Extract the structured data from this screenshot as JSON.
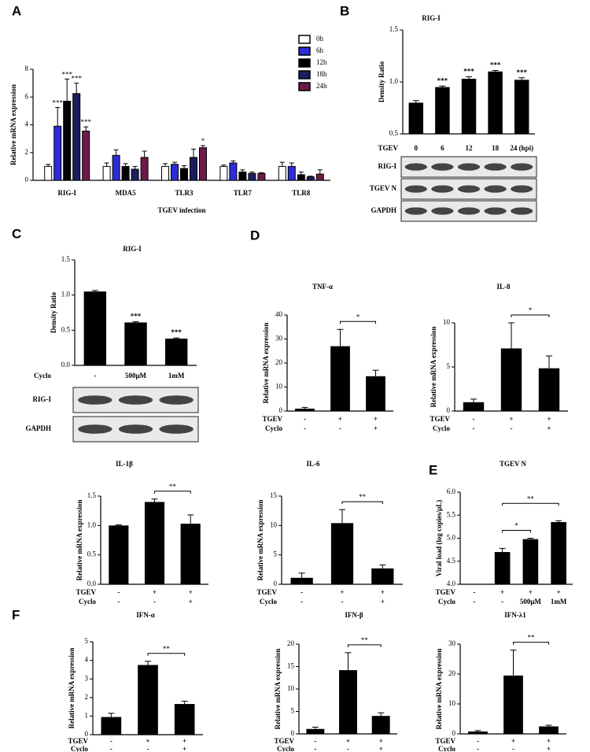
{
  "chart_data": [
    {
      "type": "bar",
      "panel": "A",
      "y_label": "Relative  mRNA expression",
      "x_label": "TGEV infection",
      "categories": [
        "RIG-I",
        "MDA5",
        "TLR3",
        "TLR7",
        "TLR8"
      ],
      "series": [
        {
          "name": "0h",
          "color": "#ffffff",
          "values": [
            1.0,
            1.0,
            1.0,
            1.0,
            1.0
          ],
          "errors": [
            0.15,
            0.25,
            0.2,
            0.1,
            0.3
          ],
          "significance": [
            null,
            null,
            null,
            null,
            null
          ]
        },
        {
          "name": "6h",
          "color": "#2c2cd8",
          "values": [
            3.9,
            1.8,
            1.15,
            1.25,
            1.0
          ],
          "errors": [
            1.35,
            0.4,
            0.15,
            0.15,
            0.25
          ],
          "significance": [
            "***",
            null,
            null,
            null,
            null
          ]
        },
        {
          "name": "12h",
          "color": "#000000",
          "values": [
            5.7,
            1.0,
            0.85,
            0.6,
            0.4
          ],
          "errors": [
            1.6,
            0.2,
            0.2,
            0.15,
            0.2
          ],
          "significance": [
            "***",
            null,
            null,
            null,
            null
          ]
        },
        {
          "name": "18h",
          "color": "#1b1f5e",
          "values": [
            6.25,
            0.8,
            1.65,
            0.5,
            0.25
          ],
          "errors": [
            0.75,
            0.2,
            0.6,
            0.1,
            0.05
          ],
          "significance": [
            "***",
            null,
            null,
            null,
            null
          ]
        },
        {
          "name": "24h",
          "color": "#6b1a4a",
          "values": [
            3.55,
            1.65,
            2.35,
            0.5,
            0.45
          ],
          "errors": [
            0.3,
            0.45,
            0.15,
            0.05,
            0.3
          ],
          "significance": [
            "***",
            null,
            "*",
            null,
            null
          ]
        }
      ],
      "ylim": [
        0,
        8
      ],
      "yticks": [
        0,
        2,
        4,
        6,
        8
      ],
      "legend": "top-right"
    },
    {
      "type": "bar",
      "panel": "B",
      "title": "RIG-I",
      "y_label": "Density Ratio",
      "color": "#000000",
      "values": [
        0.8,
        0.95,
        1.03,
        1.1,
        1.02
      ],
      "errors": [
        0.02,
        0.01,
        0.02,
        0.01,
        0.02
      ],
      "significance": [
        null,
        "***",
        "***",
        "***",
        "***"
      ],
      "ylim": [
        0.5,
        1.5
      ],
      "yticks": [
        {
          "value": 0.5,
          "label": "0.5"
        },
        {
          "value": 1,
          "label": "1.0"
        },
        {
          "value": 1.5,
          "label": "1.5"
        }
      ],
      "rows": [
        {
          "label": "TGEV",
          "cells": [
            "0",
            "6",
            "12",
            "18",
            "24 (hpi)"
          ]
        }
      ],
      "blots": [
        "RIG-I",
        "TGEV N",
        "GAPDH"
      ]
    },
    {
      "type": "bar",
      "panel": "C",
      "title": "RIG-I",
      "y_label": "Density Ratio",
      "color": "#000000",
      "values": [
        1.05,
        0.61,
        0.38
      ],
      "errors": [
        0.015,
        0.01,
        0.01
      ],
      "significance": [
        null,
        "***",
        "***"
      ],
      "ylim": [
        0,
        1.5
      ],
      "yticks": [
        {
          "value": 0,
          "label": "0.0"
        },
        0.5,
        {
          "value": 1,
          "label": "1.0"
        },
        1.5
      ],
      "rows": [
        {
          "label": "Cyclo",
          "cells": [
            "-",
            "500μM",
            "1mM"
          ]
        }
      ],
      "blots": [
        "RIG-I",
        "GAPDH"
      ]
    },
    {
      "type": "bar",
      "panel": "D",
      "title": "TNF-α",
      "y_label": "Relative mRNA expression",
      "color": "#000000",
      "values": [
        1,
        27,
        14.5
      ],
      "errors": [
        0.5,
        7,
        2.5
      ],
      "brackets": [
        {
          "from": 1,
          "to": 2,
          "label": "*"
        }
      ],
      "ylim": [
        0,
        40
      ],
      "yticks": [
        0,
        10,
        20,
        30,
        40
      ],
      "rows": [
        {
          "label": "TGEV",
          "cells": [
            "-",
            "+",
            "+"
          ]
        },
        {
          "label": "Cyclo",
          "cells": [
            "-",
            "-",
            "+"
          ]
        }
      ]
    },
    {
      "type": "bar",
      "title": "IL-8",
      "y_label": "Relative mRNA expression",
      "color": "#000000",
      "values": [
        1,
        7.1,
        4.85
      ],
      "errors": [
        0.35,
        2.9,
        1.4
      ],
      "brackets": [
        {
          "from": 1,
          "to": 2,
          "label": "*"
        }
      ],
      "ylim": [
        0,
        10
      ],
      "yticks": [
        0,
        5,
        10
      ],
      "rows": [
        {
          "label": "TGEV",
          "cells": [
            "-",
            "+",
            "+"
          ]
        },
        {
          "label": "Cyclo",
          "cells": [
            "-",
            "-",
            "+"
          ]
        }
      ]
    },
    {
      "type": "bar",
      "title": "IL-1β",
      "y_label": "Relative mRNA expression",
      "color": "#000000",
      "values": [
        1.0,
        1.4,
        1.03
      ],
      "errors": [
        0.01,
        0.05,
        0.15
      ],
      "brackets": [
        {
          "from": 1,
          "to": 2,
          "label": "**"
        }
      ],
      "ylim": [
        0,
        1.5
      ],
      "yticks": [
        {
          "value": 0,
          "label": "0.0"
        },
        0.5,
        {
          "value": 1,
          "label": "1.0"
        },
        1.5
      ],
      "rows": [
        {
          "label": "TGEV",
          "cells": [
            "-",
            "+",
            "+"
          ]
        },
        {
          "label": "Cyclo",
          "cells": [
            "-",
            "-",
            "+"
          ]
        }
      ]
    },
    {
      "type": "bar",
      "title": "IL-6",
      "y_label": "Relative mRNA expression",
      "color": "#000000",
      "values": [
        1.1,
        10.4,
        2.7
      ],
      "errors": [
        0.8,
        2.3,
        0.6
      ],
      "brackets": [
        {
          "from": 1,
          "to": 2,
          "label": "**"
        }
      ],
      "ylim": [
        0,
        15
      ],
      "yticks": [
        0,
        5,
        10,
        15
      ],
      "rows": [
        {
          "label": "TGEV",
          "cells": [
            "-",
            "+",
            "+"
          ]
        },
        {
          "label": "Cyclo",
          "cells": [
            "-",
            "-",
            "+"
          ]
        }
      ]
    },
    {
      "type": "bar",
      "panel": "E",
      "title": "TGEV N",
      "y_label": "Viral load (log copies/μL)",
      "color": "#000000",
      "values": [
        null,
        4.7,
        4.98,
        5.35
      ],
      "errors": [
        null,
        0.08,
        0.02,
        0.03
      ],
      "brackets": [
        {
          "from": 1,
          "to": 2,
          "label": "*"
        },
        {
          "from": 1,
          "to": 3,
          "label": "**"
        }
      ],
      "ylim": [
        4,
        6
      ],
      "yticks": [
        {
          "value": 4,
          "label": "4.0"
        },
        4.5,
        {
          "value": 5,
          "label": "5.0"
        },
        5.5,
        {
          "value": 6,
          "label": "6.0"
        }
      ],
      "rows": [
        {
          "label": "TGEV",
          "cells": [
            "-",
            "+",
            "+",
            "+"
          ]
        },
        {
          "label": "Cyclo",
          "cells": [
            "-",
            "-",
            "500μM",
            "1mM"
          ]
        }
      ]
    },
    {
      "type": "bar",
      "panel": "F",
      "title": "IFN-α",
      "y_label": "Relative mRNA expression",
      "color": "#000000",
      "values": [
        0.95,
        3.75,
        1.65
      ],
      "errors": [
        0.2,
        0.2,
        0.15
      ],
      "brackets": [
        {
          "from": 1,
          "to": 2,
          "label": "**"
        }
      ],
      "ylim": [
        0,
        5
      ],
      "yticks": [
        0,
        1,
        2,
        3,
        4,
        5
      ],
      "rows": [
        {
          "label": "TGEV",
          "cells": [
            "-",
            "+",
            "+"
          ]
        },
        {
          "label": "Cyclo",
          "cells": [
            "-",
            "-",
            "+"
          ]
        }
      ]
    },
    {
      "type": "bar",
      "title": "IFN-β",
      "y_label": "Relative mRNA expression",
      "color": "#000000",
      "values": [
        1.1,
        14.2,
        4.0
      ],
      "errors": [
        0.4,
        3.9,
        0.7
      ],
      "brackets": [
        {
          "from": 1,
          "to": 2,
          "label": "**"
        }
      ],
      "ylim": [
        0,
        20
      ],
      "yticks": [
        0,
        5,
        10,
        15,
        20
      ],
      "rows": [
        {
          "label": "TGEV",
          "cells": [
            "-",
            "+",
            "+"
          ]
        },
        {
          "label": "Cyclo",
          "cells": [
            "-",
            "-",
            "+"
          ]
        }
      ]
    },
    {
      "type": "bar",
      "title": "IFN-λ1",
      "y_label": "Relative mRNA expression",
      "color": "#000000",
      "values": [
        0.8,
        19.5,
        2.5
      ],
      "errors": [
        0.3,
        8.5,
        0.4
      ],
      "brackets": [
        {
          "from": 1,
          "to": 2,
          "label": "**"
        }
      ],
      "ylim": [
        0,
        30
      ],
      "yticks": [
        0,
        10,
        20,
        30
      ],
      "rows": [
        {
          "label": "TGEV",
          "cells": [
            "-",
            "+",
            "+"
          ]
        },
        {
          "label": "Cyclo",
          "cells": [
            "-",
            "-",
            "+"
          ]
        }
      ]
    }
  ]
}
